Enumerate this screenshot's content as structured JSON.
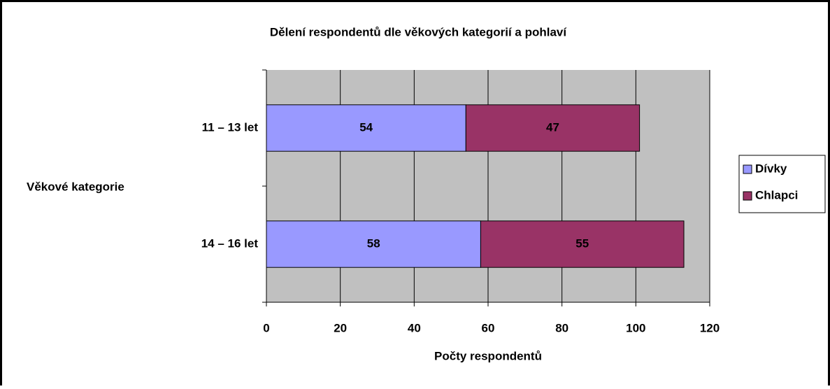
{
  "chart_data": {
    "type": "stacked_barh",
    "title": "Dělení respondentů dle věkových kategorií a pohlaví",
    "xlabel": "Počty respondentů",
    "ylabel": "Věkové kategorie",
    "categories": [
      "11 – 13 let",
      "14 – 16 let"
    ],
    "series": [
      {
        "name": "Dívky",
        "color": "#9999ff",
        "values": [
          54,
          58
        ]
      },
      {
        "name": "Chlapci",
        "color": "#993366",
        "values": [
          47,
          55
        ]
      }
    ],
    "xlim": [
      0,
      120
    ],
    "xticks": [
      0,
      20,
      40,
      60,
      80,
      100,
      120
    ],
    "grid": true,
    "legend": "right"
  }
}
